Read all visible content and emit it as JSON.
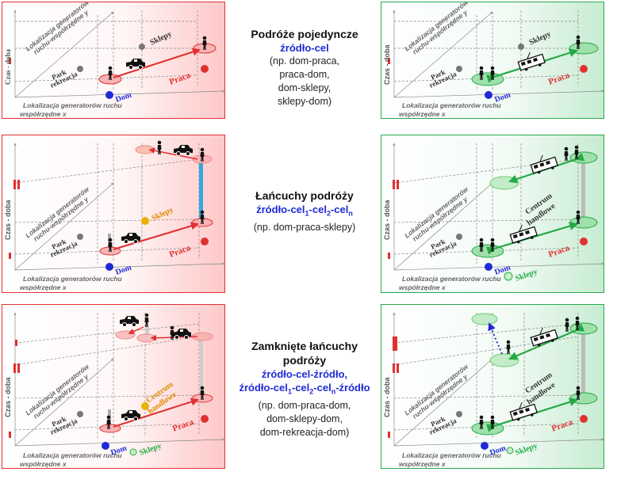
{
  "axes": {
    "time": "Czas - doba",
    "y_line1": "Lokalizacja generatorów",
    "y_line2": "ruchu-współrzędne y",
    "x_line1": "Lokalizacja generatorów ruchu",
    "x_line2": "współrzędne x"
  },
  "places": {
    "dom": "Dom",
    "praca": "Praca",
    "sklepy": "Sklepy",
    "park1": "Park",
    "park2": "rekreacja",
    "centrum1": "Centrum",
    "centrum2": "handlowe"
  },
  "row1": {
    "title": "Podróże pojedyncze",
    "blue": "źródło-cel",
    "desc": [
      "(np. dom-praca,",
      "praca-dom,",
      "dom-sklepy,",
      "sklepy-dom)"
    ]
  },
  "row2": {
    "title": "Łańcuchy podróży",
    "blue_a": "źródło-cel",
    "blue_s1": "1",
    "blue_b": "-cel",
    "blue_s2": "2",
    "blue_c": "-cel",
    "blue_sn": "n",
    "desc": "(np. dom-praca-sklepy)"
  },
  "row3": {
    "title1": "Zamknięte łańcuchy",
    "title2": "podróży",
    "blue1": "źródło-cel-źródło,",
    "blue2_a": "źródło-cel",
    "blue2_s1": "1",
    "blue2_b": "-cel",
    "blue2_s2": "2",
    "blue2_c": "-cel",
    "blue2_sn": "n",
    "blue2_d": "-źródło",
    "desc": [
      "(np. dom-praca-dom,",
      "dom-sklepy-dom,",
      "dom-rekreacja-dom)"
    ]
  },
  "colors": {
    "red": "#e03030",
    "green": "#22aa44",
    "blue": "#1f2ad6",
    "cyan": "#2fa8e0"
  }
}
